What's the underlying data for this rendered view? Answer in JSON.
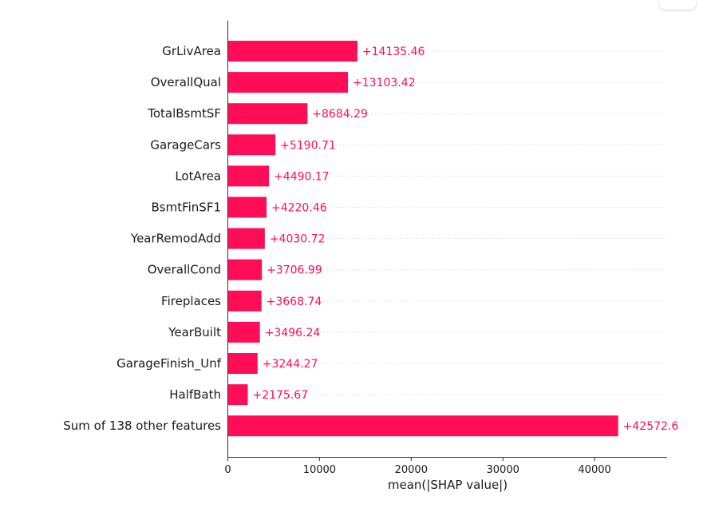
{
  "chart_data": {
    "type": "bar",
    "orientation": "horizontal",
    "categories": [
      "GrLivArea",
      "OverallQual",
      "TotalBsmtSF",
      "GarageCars",
      "LotArea",
      "BsmtFinSF1",
      "YearRemodAdd",
      "OverallCond",
      "Fireplaces",
      "YearBuilt",
      "GarageFinish_Unf",
      "HalfBath",
      "Sum of 138 other features"
    ],
    "values": [
      14135.46,
      13103.42,
      8684.29,
      5190.71,
      4490.17,
      4220.46,
      4030.72,
      3706.99,
      3668.74,
      3496.24,
      3244.27,
      2175.67,
      42572.6
    ],
    "value_labels": [
      "+14135.46",
      "+13103.42",
      "+8684.29",
      "+5190.71",
      "+4490.17",
      "+4220.46",
      "+4030.72",
      "+3706.99",
      "+3668.74",
      "+3496.24",
      "+3244.27",
      "+2175.67",
      "+42572.6"
    ],
    "xlabel": "mean(|SHAP value|)",
    "ylabel": "",
    "title": "",
    "xticks": [
      0,
      10000,
      20000,
      30000,
      40000
    ],
    "xtick_labels": [
      "0",
      "10000",
      "20000",
      "30000",
      "40000"
    ],
    "xlim": [
      0,
      47000
    ],
    "grid": "dotted horizontal guide lines per row",
    "colors": {
      "bar": "#ff0d57",
      "text": "#1a1a1a",
      "axis": "#333333",
      "grid": "#cccccc"
    }
  }
}
